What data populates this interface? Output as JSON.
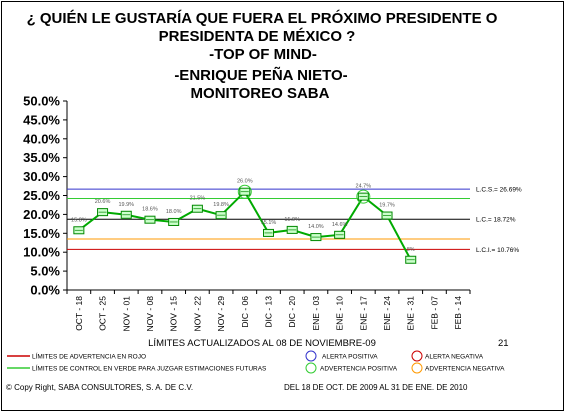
{
  "chart_data": {
    "type": "line",
    "title_lines": [
      "¿ QUIÉN LE GUSTARÍA QUE FUERA EL PRÓXIMO PRESIDENTE O",
      "PRESIDENTA DE MÉXICO ?",
      "-TOP OF MIND-",
      "-ENRIQUE PEÑA NIETO-",
      "MONITOREO SABA"
    ],
    "categories": [
      "OCT - 18",
      "OCT - 25",
      "NOV - 01",
      "NOV - 08",
      "NOV - 15",
      "NOV - 22",
      "NOV - 29",
      "DIC - 06",
      "DIC - 13",
      "DIC - 20",
      "ENE - 03",
      "ENE - 10",
      "ENE - 17",
      "ENE - 24",
      "ENE - 31",
      "FEB - 07",
      "FEB - 14"
    ],
    "values": [
      15.8,
      20.6,
      19.9,
      18.6,
      18.0,
      21.5,
      19.8,
      26.0,
      15.1,
      15.9,
      14.0,
      14.6,
      24.7,
      19.7,
      8.0,
      null,
      null
    ],
    "value_labels": [
      "15.8%",
      "20.6%",
      "19.9%",
      "18.6%",
      "18.0%",
      "21.5%",
      "19.8%",
      "26.0%",
      "15.1%",
      "15.9%",
      "14.0%",
      "14.6%",
      "24.7%",
      "19.7%",
      "8%",
      "",
      ""
    ],
    "y_ticks": [
      "50.0%",
      "45.0%",
      "40.0%",
      "35.0%",
      "30.0%",
      "25.0%",
      "20.0%",
      "15.0%",
      "10.0%",
      "5.0%",
      "0.0%"
    ],
    "ylim": [
      0,
      50
    ],
    "reference_lines": [
      {
        "label": "L.C.S.= 26.69%",
        "value": 26.69,
        "color": "#3333cc"
      },
      {
        "label": "",
        "value": 24.2,
        "color": "#33cc33"
      },
      {
        "label": "L.C.= 18.72%",
        "value": 18.72,
        "color": "#000000"
      },
      {
        "label": "",
        "value": 13.5,
        "color": "#ff9900"
      },
      {
        "label": "L.C.I.= 10.76%",
        "value": 10.76,
        "color": "#cc0000"
      }
    ],
    "grid": false,
    "series_color": "#00aa00",
    "marker_fill": "#ccffcc"
  },
  "footer": {
    "limits_note": "LÍMITES ACTUALIZADOS AL 08 DE NOVIEMBRE-09",
    "page_number": "21",
    "legend_red_line": "LÍMITES DE ADVERTENCIA EN ROJO",
    "legend_green_line": "LÍMITES DE CONTROL EN VERDE PARA JUZGAR ESTIMACIONES FUTURAS",
    "legend_blue_circle": "ALERTA POSITIVA",
    "legend_red_circle": "ALERTA NEGATIVA",
    "legend_green_circle": "ADVERTENCIA POSITIVA",
    "legend_orange_circle": "ADVERTENCIA NEGATIVA",
    "copyright": "© Copy Right, SABA CONSULTORES, S. A. DE C.V.",
    "date_range": "DEL 18 DE OCT. DE 2009 AL 31 DE ENE. DE 2010",
    "colors": {
      "red": "#cc0000",
      "green": "#33cc33",
      "blue": "#3333cc",
      "orange": "#ff9900"
    }
  }
}
